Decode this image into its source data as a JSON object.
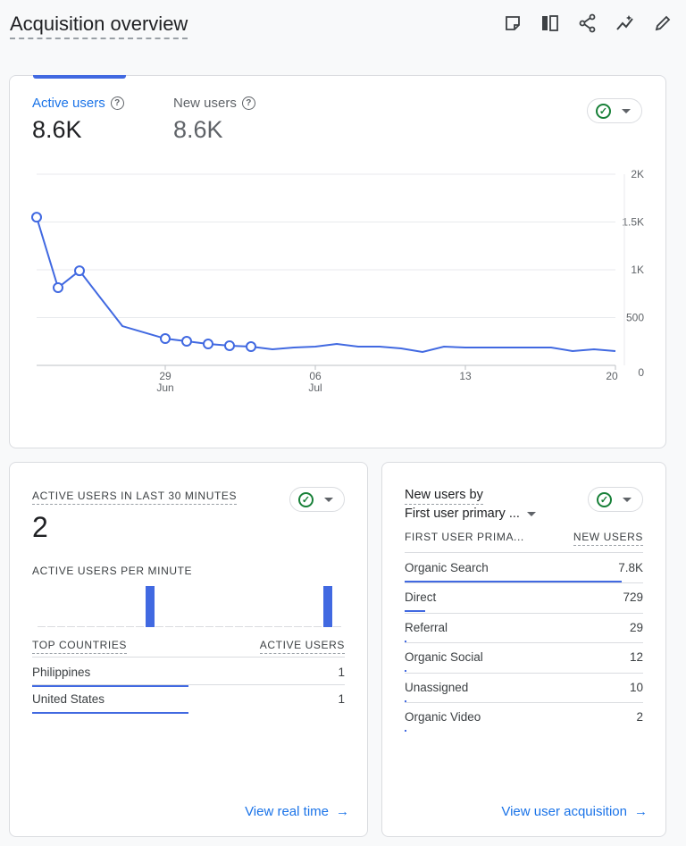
{
  "header": {
    "title": "Acquisition overview",
    "icons": [
      "note-icon",
      "compare-icon",
      "share-icon",
      "insights-icon",
      "edit-icon"
    ]
  },
  "main_card": {
    "metrics": [
      {
        "label": "Active users",
        "value": "8.6K",
        "active": true
      },
      {
        "label": "New users",
        "value": "8.6K",
        "active": false
      }
    ],
    "chart_data": {
      "type": "line",
      "x_ticks": [
        {
          "day": "29",
          "month": "Jun",
          "index": 6
        },
        {
          "day": "06",
          "month": "Jul",
          "index": 13
        },
        {
          "day": "13",
          "month": "",
          "index": 20
        },
        {
          "day": "20",
          "month": "",
          "index": 27
        }
      ],
      "y_ticks": [
        "2K",
        "1.5K",
        "1K",
        "500",
        "0"
      ],
      "ylim": [
        0,
        2000
      ],
      "grid": true,
      "color": "#4169e1",
      "x": [
        "Jun 23",
        "Jun 24",
        "Jun 25",
        "Jun 26",
        "Jun 27",
        "Jun 28",
        "Jun 29",
        "Jun 30",
        "Jul 1",
        "Jul 2",
        "Jul 3",
        "Jul 4",
        "Jul 5",
        "Jul 6",
        "Jul 7",
        "Jul 8",
        "Jul 9",
        "Jul 10",
        "Jul 11",
        "Jul 12",
        "Jul 13",
        "Jul 14",
        "Jul 15",
        "Jul 16",
        "Jul 17",
        "Jul 18",
        "Jul 19",
        "Jul 20"
      ],
      "values": [
        1550,
        813,
        990,
        700,
        411,
        345,
        280,
        252,
        224,
        206,
        196,
        168,
        187,
        196,
        224,
        196,
        196,
        178,
        140,
        196,
        187,
        187,
        187,
        187,
        187,
        150,
        168,
        150
      ],
      "markers": [
        0,
        1,
        2,
        6,
        7,
        8,
        9,
        10
      ]
    }
  },
  "realtime": {
    "title": "ACTIVE USERS IN LAST 30 MINUTES",
    "value": "2",
    "per_minute_label": "ACTIVE USERS PER MINUTE",
    "per_minute": [
      0,
      0,
      0,
      0,
      0,
      0,
      0,
      0,
      0,
      0,
      0,
      1,
      0,
      0,
      0,
      0,
      0,
      0,
      0,
      0,
      0,
      0,
      0,
      0,
      0,
      0,
      0,
      0,
      0,
      1,
      0
    ],
    "col1": "TOP COUNTRIES",
    "col2": "ACTIVE USERS",
    "rows": [
      {
        "name": "Philippines",
        "value": "1",
        "share": 0.5
      },
      {
        "name": "United States",
        "value": "1",
        "share": 0.5
      }
    ],
    "link": "View real time"
  },
  "acquisition": {
    "title": "New users by",
    "dimension": "First user primary ...",
    "col1": "FIRST USER PRIMA...",
    "col2": "NEW USERS",
    "rows": [
      {
        "name": "Organic Search",
        "value": "7.8K",
        "share": 0.91
      },
      {
        "name": "Direct",
        "value": "729",
        "share": 0.085
      },
      {
        "name": "Referral",
        "value": "29",
        "share": 0.004
      },
      {
        "name": "Organic Social",
        "value": "12",
        "share": 0.002
      },
      {
        "name": "Unassigned",
        "value": "10",
        "share": 0.001
      },
      {
        "name": "Organic Video",
        "value": "2",
        "share": 0.001
      }
    ],
    "link": "View user acquisition"
  }
}
